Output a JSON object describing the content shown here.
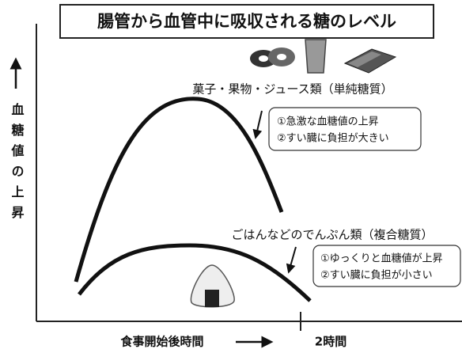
{
  "title": "腸管から血管中に吸収される糖のレベル",
  "y_axis_label": "血糖値の上昇",
  "x_axis_label": "食事開始後時間",
  "x_end_label": "2時間",
  "curves": [
    {
      "label": "菓子・果物・ジュース類（単純糖質）",
      "notes": [
        "①急激な血糖値の上昇",
        "②すい臓に負担が大きい"
      ]
    },
    {
      "label": "ごはんなどのでんぷん類（複合糖質）",
      "notes": [
        "①ゆっくりと血糖値が上昇",
        "②すい臓に負担が小さい"
      ]
    }
  ]
}
